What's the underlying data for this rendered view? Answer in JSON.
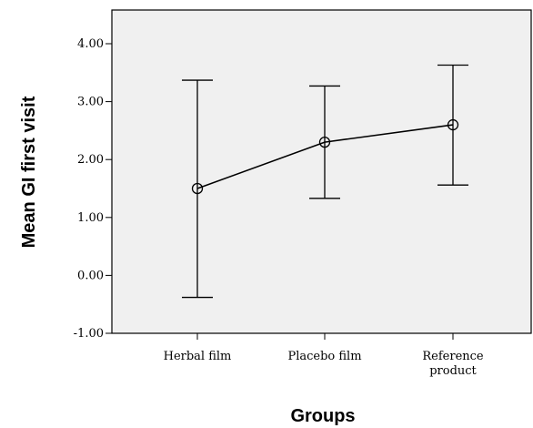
{
  "chart_data": {
    "type": "line",
    "xlabel": "Groups",
    "ylabel": "Mean GI first visit",
    "ylim": [
      -1.0,
      4.0
    ],
    "yticks": [
      "-1.00",
      "0.00",
      "1.00",
      "2.00",
      "3.00",
      "4.00"
    ],
    "ytick_values": [
      -1,
      0,
      1,
      2,
      3,
      4
    ],
    "categories": [
      [
        "Herbal film"
      ],
      [
        "Placebo film"
      ],
      [
        "Reference",
        "product"
      ]
    ],
    "series": [
      {
        "values": [
          1.5,
          2.3,
          2.6
        ],
        "error_low": [
          -0.38,
          1.33,
          1.56
        ],
        "error_high": [
          3.37,
          3.27,
          3.63
        ]
      }
    ],
    "grid": false,
    "legend": "none"
  }
}
